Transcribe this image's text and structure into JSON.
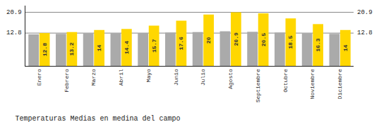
{
  "chart_data": {
    "type": "bar",
    "title": "Temperaturas Medias en medina del campo",
    "categories": [
      "Enero",
      "Febrero",
      "Marzo",
      "Abril",
      "Mayo",
      "Junio",
      "Julio",
      "Agosto",
      "Septiembre",
      "Octubre",
      "Noviembre",
      "Diciembre"
    ],
    "series": [
      {
        "color": "#AAAAAA",
        "values": [
          12.3,
          12.5,
          12.7,
          12.7,
          12.8,
          13.0,
          13.2,
          13.5,
          13.3,
          13.0,
          12.7,
          12.5
        ]
      },
      {
        "color": "#FFD700",
        "data_labels": true,
        "values": [
          12.8,
          13.2,
          14.0,
          14.4,
          15.7,
          17.6,
          20.0,
          20.9,
          20.5,
          18.5,
          16.3,
          14.0
        ]
      }
    ],
    "annotations": [
      {
        "text": "20.9",
        "y": 20.9
      },
      {
        "text": "12.8",
        "y": 12.8
      }
    ],
    "ylim": [
      0,
      23.5
    ],
    "yticks": [],
    "tick_labels": "x",
    "grid": false
  }
}
